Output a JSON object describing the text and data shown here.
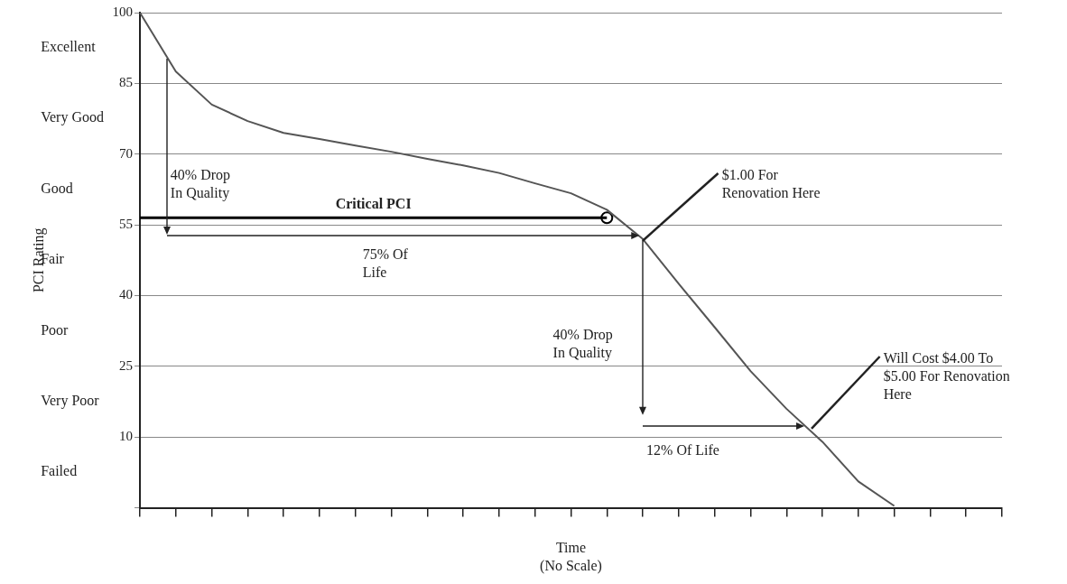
{
  "chart_data": {
    "type": "line",
    "xlabel": "Time\n(No Scale)",
    "ylabel": "PCI Rating",
    "categories": [
      null,
      null,
      null,
      null,
      null,
      null,
      null,
      null,
      null,
      null,
      null,
      null,
      null,
      null,
      null,
      null,
      null,
      null,
      null,
      null,
      null,
      null,
      null,
      null,
      null
    ],
    "ylim": [
      -5,
      100
    ],
    "yticks": [
      {
        "value": -5,
        "label": null
      },
      10,
      25,
      40,
      55,
      70,
      85,
      100
    ],
    "grid": "y",
    "marker": "none",
    "line_style": "solid",
    "series": [
      {
        "color": "#555555",
        "values": [
          100,
          87.5,
          80.5,
          77,
          74.5,
          73.2,
          71.8,
          70.5,
          69,
          67.6,
          66,
          63.8,
          61.7,
          58.2,
          52,
          42.5,
          33.3,
          24,
          16,
          9,
          0.6,
          -4.6,
          null,
          null,
          null
        ]
      },
      {
        "name": "Critical PCI",
        "color": "#000000",
        "values": [
          56.5,
          56.5,
          56.5,
          56.5,
          56.5,
          56.5,
          56.5,
          56.5,
          56.5,
          56.5,
          56.5,
          56.5,
          56.5,
          56.5,
          null,
          null,
          null,
          null,
          null,
          null,
          null,
          null,
          null,
          null,
          null
        ]
      },
      {
        "marker": "circle",
        "color": "#000000",
        "values": [
          null,
          null,
          null,
          null,
          null,
          null,
          null,
          null,
          null,
          null,
          null,
          null,
          null,
          56.5,
          null,
          null,
          null,
          null,
          null,
          null,
          null,
          null,
          null,
          null,
          null
        ]
      }
    ],
    "annotations": [
      "Excellent",
      "Very Good",
      "Good",
      "Fair",
      "Poor",
      "Very Poor",
      "Failed",
      "40% Drop\nIn Quality",
      "75% Of\nLife",
      "40% Drop\nIn Quality",
      "12% Of Life",
      "$1.00 For\nRenovation Here",
      "Will Cost $4.00 To\n$5.00 For Renovation\nHere"
    ]
  }
}
